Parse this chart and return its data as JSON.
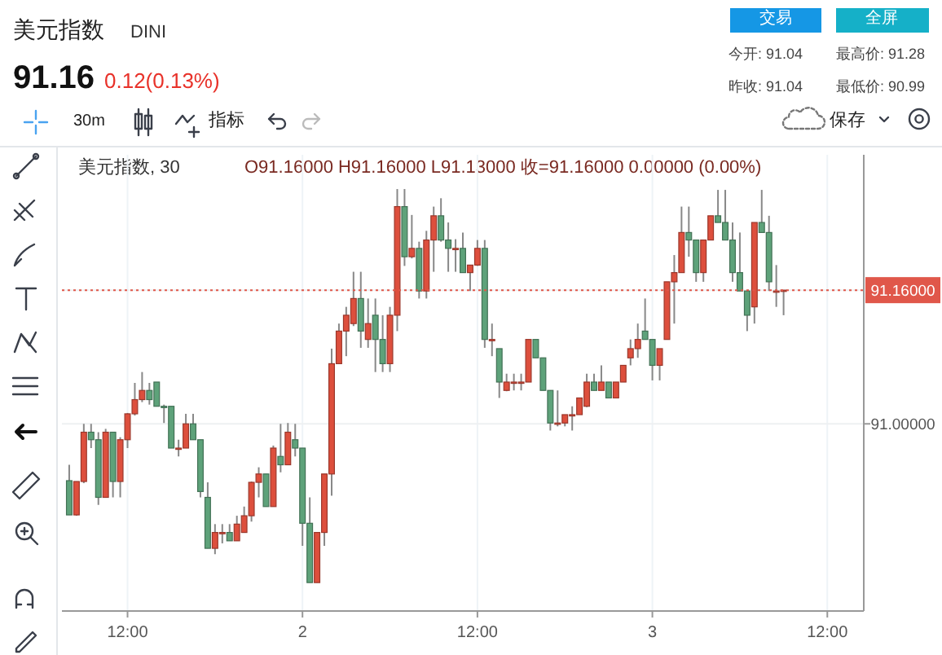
{
  "chart_data": {
    "type": "candlestick",
    "title": "美元指数",
    "subtitle": "DINI",
    "annotations": [
      "91.16",
      "0.12(0.13%)",
      "交易",
      "全屏",
      "今开: 91.04",
      "最高价: 91.28",
      "昨收: 91.04",
      "最低价: 90.99",
      "30m",
      "指标",
      "保存",
      "美元指数, 30",
      "O91.16000 H91.16000 L91.13000 收=91.16000 0.00000 (0.00%)"
    ],
    "colors": [
      "#5ea27a",
      "#dd4f3d",
      "#dd4f3d",
      "#5ea27a",
      "#5ea27a",
      "#dd4f3d",
      "#5ea27a",
      "#dd4f3d",
      "#dd4f3d",
      "#dd4f3d",
      "#dd4f3d",
      "#5ea27a",
      "#5ea27a",
      "#5ea27a",
      "#5ea27a",
      "#dd4f3d",
      "#dd4f3d",
      "#5ea27a",
      "#5ea27a",
      "#5ea27a",
      "#dd4f3d",
      "#dd4f3d",
      "#5ea27a",
      "#dd4f3d",
      "#dd4f3d",
      "#dd4f3d",
      "#dd4f3d",
      "#5ea27a",
      "#dd4f3d",
      "#5ea27a",
      "#dd4f3d",
      "#5ea27a",
      "#5ea27a",
      "#5ea27a",
      "#dd4f3d",
      "#dd4f3d",
      "#dd4f3d",
      "#dd4f3d",
      "#dd4f3d",
      "#dd4f3d",
      "#5ea27a",
      "#dd4f3d",
      "#5ea27a",
      "#5ea27a",
      "#dd4f3d",
      "#dd4f3d",
      "#5ea27a",
      "#dd4f3d",
      "#5ea27a",
      "#dd4f3d",
      "#dd4f3d",
      "#5ea27a",
      "#5ea27a",
      "#dd4f3d",
      "#5ea27a",
      "#dd4f3d",
      "#dd4f3d",
      "#5ea27a",
      "#dd4f3d",
      "#5ea27a",
      "#dd4f3d",
      "#dd4f3d",
      "#dd4f3d",
      "#dd4f3d",
      "#5ea27a",
      "#5ea27a",
      "#5ea27a",
      "#dd4f3d",
      "#dd4f3d",
      "#dd4f3d",
      "#dd4f3d",
      "#dd4f3d",
      "#5ea27a",
      "#dd4f3d",
      "#5ea27a",
      "#dd4f3d",
      "#dd4f3d",
      "#dd4f3d",
      "#dd4f3d",
      "#5ea27a",
      "#5ea27a",
      "#dd4f3d",
      "#dd4f3d",
      "#dd4f3d",
      "#dd4f3d",
      "#5ea27a",
      "#5ea27a",
      "#dd4f3d",
      "#dd4f3d",
      "#5ea27a",
      "#5ea27a",
      "#5ea27a",
      "#5ea27a",
      "#5ea27a",
      "#dd4f3d",
      "#5ea27a",
      "#5ea27a",
      "#dd4f3d",
      "#dd4f3d",
      null,
      null,
      null,
      null,
      null,
      null
    ],
    "categories": [
      null,
      null,
      null,
      null,
      null,
      null,
      null,
      null,
      "12:00",
      null,
      null,
      null,
      null,
      null,
      null,
      null,
      null,
      null,
      null,
      null,
      null,
      null,
      null,
      null,
      null,
      null,
      null,
      null,
      null,
      null,
      null,
      null,
      "2",
      null,
      null,
      null,
      null,
      null,
      null,
      null,
      null,
      null,
      null,
      null,
      null,
      null,
      null,
      null,
      null,
      null,
      null,
      null,
      null,
      null,
      null,
      null,
      "12:00",
      null,
      null,
      null,
      null,
      null,
      null,
      null,
      null,
      null,
      null,
      null,
      null,
      null,
      null,
      null,
      null,
      null,
      null,
      null,
      null,
      null,
      null,
      null,
      "3",
      null,
      null,
      null,
      null,
      null,
      null,
      null,
      null,
      null,
      null,
      null,
      null,
      null,
      null,
      null,
      null,
      null,
      null,
      null,
      null,
      null,
      null,
      null,
      "12:00"
    ],
    "ohlc": [
      [
        90.932,
        90.951,
        90.891,
        90.891
      ],
      [
        90.891,
        90.931,
        90.89,
        90.931
      ],
      [
        90.931,
        91.0,
        90.929,
        90.99
      ],
      [
        90.99,
        91.0,
        90.971,
        90.981
      ],
      [
        90.981,
        90.99,
        90.903,
        90.912
      ],
      [
        90.912,
        90.994,
        90.912,
        90.99
      ],
      [
        90.99,
        90.99,
        90.912,
        90.931
      ],
      [
        90.931,
        90.984,
        90.912,
        90.981
      ],
      [
        90.981,
        91.013,
        90.971,
        91.012
      ],
      [
        91.012,
        91.049,
        91.01,
        91.029
      ],
      [
        91.029,
        91.062,
        91.026,
        91.04
      ],
      [
        91.04,
        91.049,
        91.023,
        91.029
      ],
      [
        91.05,
        91.05,
        91.021,
        91.021
      ],
      [
        91.021,
        91.023,
        91.001,
        91.02
      ],
      [
        91.021,
        91.021,
        90.971,
        90.971
      ],
      [
        90.971,
        90.981,
        90.961,
        90.971
      ],
      [
        90.971,
        91.012,
        90.971,
        91.0
      ],
      [
        91.0,
        91.012,
        90.981,
        90.981
      ],
      [
        90.981,
        90.981,
        90.912,
        90.919
      ],
      [
        90.912,
        90.93,
        90.851,
        90.851
      ],
      [
        90.851,
        90.88,
        90.844,
        90.87
      ],
      [
        90.87,
        90.88,
        90.857,
        90.87
      ],
      [
        90.87,
        90.88,
        90.86,
        90.86
      ],
      [
        90.86,
        90.89,
        90.86,
        90.88
      ],
      [
        90.87,
        90.901,
        90.87,
        90.89
      ],
      [
        90.89,
        90.931,
        90.883,
        90.93
      ],
      [
        90.93,
        90.948,
        90.912,
        90.94
      ],
      [
        90.94,
        90.94,
        90.901,
        90.901
      ],
      [
        90.901,
        90.974,
        90.901,
        90.971
      ],
      [
        90.961,
        91.0,
        90.942,
        90.951
      ],
      [
        90.951,
        91.001,
        90.951,
        90.99
      ],
      [
        90.981,
        91.0,
        90.961,
        90.971
      ],
      [
        90.971,
        90.971,
        90.854,
        90.881
      ],
      [
        90.881,
        90.912,
        90.81,
        90.81
      ],
      [
        90.81,
        90.87,
        90.81,
        90.87
      ],
      [
        90.87,
        90.94,
        90.854,
        90.94
      ],
      [
        90.94,
        91.09,
        90.914,
        91.072
      ],
      [
        91.072,
        91.12,
        91.072,
        91.111
      ],
      [
        91.111,
        91.14,
        91.081,
        91.13
      ],
      [
        91.12,
        91.182,
        91.117,
        91.15
      ],
      [
        91.15,
        91.182,
        91.091,
        91.111
      ],
      [
        91.101,
        91.15,
        91.091,
        91.12
      ],
      [
        91.13,
        91.15,
        91.062,
        91.101
      ],
      [
        91.101,
        91.13,
        91.062,
        91.072
      ],
      [
        91.072,
        91.14,
        91.062,
        91.13
      ],
      [
        91.13,
        91.281,
        91.111,
        91.26
      ],
      [
        91.26,
        91.281,
        91.189,
        91.2
      ],
      [
        91.2,
        91.25,
        91.198,
        91.21
      ],
      [
        91.21,
        91.218,
        91.15,
        91.159
      ],
      [
        91.159,
        91.231,
        91.15,
        91.22
      ],
      [
        91.22,
        91.26,
        91.182,
        91.249
      ],
      [
        91.249,
        91.27,
        91.218,
        91.22
      ],
      [
        91.22,
        91.241,
        91.182,
        91.21
      ],
      [
        91.21,
        91.221,
        91.182,
        91.21
      ],
      [
        91.21,
        91.229,
        91.181,
        91.181
      ],
      [
        91.181,
        91.19,
        91.159,
        91.19
      ],
      [
        91.19,
        91.22,
        91.189,
        91.21
      ],
      [
        91.21,
        91.22,
        91.091,
        91.101
      ],
      [
        91.101,
        91.12,
        91.081,
        91.101
      ],
      [
        91.09,
        91.09,
        91.031,
        91.05
      ],
      [
        91.04,
        91.06,
        91.039,
        91.05
      ],
      [
        91.05,
        91.06,
        91.04,
        91.05
      ],
      [
        91.05,
        91.06,
        91.04,
        91.05
      ],
      [
        91.05,
        91.101,
        91.05,
        91.101
      ],
      [
        91.101,
        91.101,
        91.079,
        91.079
      ],
      [
        91.079,
        91.079,
        91.04,
        91.04
      ],
      [
        91.04,
        91.04,
        90.992,
        91.001
      ],
      [
        91.001,
        91.04,
        90.997,
        91.001
      ],
      [
        91.001,
        91.011,
        90.997,
        91.011
      ],
      [
        91.011,
        91.021,
        90.992,
        91.011
      ],
      [
        91.011,
        91.031,
        91.011,
        91.031
      ],
      [
        91.021,
        91.06,
        91.02,
        91.05
      ],
      [
        91.05,
        91.06,
        91.04,
        91.04
      ],
      [
        91.04,
        91.07,
        91.04,
        91.05
      ],
      [
        91.05,
        91.05,
        91.031,
        91.031
      ],
      [
        91.031,
        91.05,
        91.031,
        91.05
      ],
      [
        91.05,
        91.07,
        91.05,
        91.07
      ],
      [
        91.079,
        91.101,
        91.07,
        91.09
      ],
      [
        91.09,
        91.12,
        91.079,
        91.101
      ],
      [
        91.111,
        91.15,
        91.101,
        91.101
      ],
      [
        91.101,
        91.101,
        91.052,
        91.07
      ],
      [
        91.07,
        91.09,
        91.052,
        91.09
      ],
      [
        91.101,
        91.17,
        91.101,
        91.17
      ],
      [
        91.17,
        91.202,
        91.12,
        91.181
      ],
      [
        91.181,
        91.26,
        91.181,
        91.229
      ],
      [
        91.229,
        91.26,
        91.2,
        91.22
      ],
      [
        91.22,
        91.22,
        91.17,
        91.181
      ],
      [
        91.181,
        91.22,
        91.17,
        91.22
      ],
      [
        91.22,
        91.249,
        91.22,
        91.249
      ],
      [
        91.249,
        91.28,
        91.241,
        91.241
      ],
      [
        91.241,
        91.28,
        91.22,
        91.22
      ],
      [
        91.22,
        91.241,
        91.17,
        91.181
      ],
      [
        91.181,
        91.229,
        91.159,
        91.159
      ],
      [
        91.159,
        91.159,
        91.111,
        91.13
      ],
      [
        91.14,
        91.241,
        91.12,
        91.241
      ],
      [
        91.241,
        91.28,
        91.229,
        91.229
      ],
      [
        91.229,
        91.249,
        91.159,
        91.17
      ],
      [
        91.159,
        91.19,
        91.14,
        91.159
      ],
      [
        91.16,
        91.16,
        91.13,
        91.16
      ],
      null,
      null,
      null,
      null,
      null,
      null
    ],
    "ylim": [
      90.776,
      91.322
    ],
    "yticks": [
      {
        "value": 91.0,
        "label": "91.00000"
      },
      {
        "value": 91.16,
        "label": "91.16000"
      }
    ],
    "ref_lines": [
      {
        "axis": "y",
        "value": 91.16,
        "color": "#e0574a",
        "line_style": "dotted"
      }
    ],
    "grid": true
  }
}
